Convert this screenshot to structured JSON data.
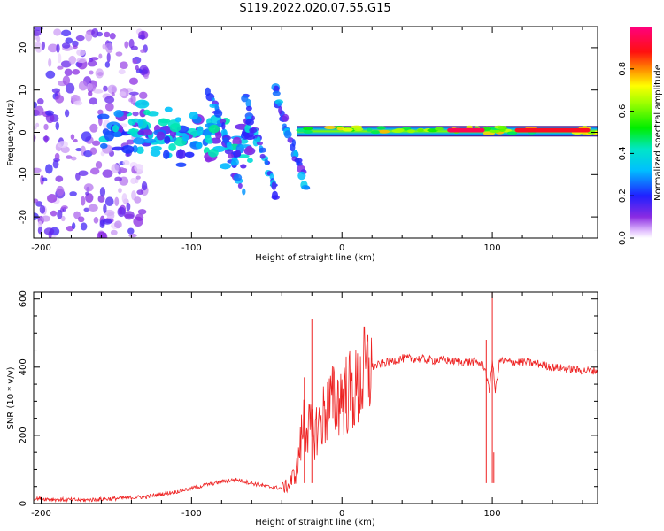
{
  "title": "S119.2022.020.07.55.G15",
  "colors": {
    "snr_line": "#ee2222",
    "axes": "#000000",
    "background": "#ffffff"
  },
  "chart_data": [
    {
      "type": "heatmap",
      "title": "S119.2022.020.07.55.G15",
      "xlabel": "Height of straight line (km)",
      "ylabel": "Frequency (Hz)",
      "xlim": [
        -205,
        170
      ],
      "ylim": [
        -25,
        25
      ],
      "xticks": [
        -200,
        -100,
        0,
        100
      ],
      "yticks": [
        -20,
        -10,
        0,
        10,
        20
      ],
      "colorbar": {
        "label": "Normalized spectral amplitude",
        "range": [
          0,
          1
        ],
        "ticks": [
          0.0,
          0.2,
          0.4,
          0.6,
          0.8
        ],
        "colormap": "rainbow (white → purple → blue → cyan → green → yellow → red → magenta)"
      },
      "features": [
        {
          "name": "scattered noise",
          "x_range": [
            -205,
            -130
          ],
          "freq_range": [
            -25,
            25
          ],
          "amplitude": 0.15
        },
        {
          "name": "multipath patches",
          "x_range": [
            -160,
            -60
          ],
          "freq_range": [
            -8,
            6
          ],
          "amplitude": 0.25
        },
        {
          "name": "diagonal streaks",
          "x_range": [
            -90,
            -30
          ],
          "freq_range": [
            -15,
            10
          ],
          "amplitude": 0.2
        },
        {
          "name": "direct signal band",
          "x_range": [
            -30,
            170
          ],
          "freq_range": [
            -1,
            1.5
          ],
          "center_freq": 0.5,
          "amplitude": 0.6
        },
        {
          "name": "peak amplitude segment",
          "x_range": [
            70,
            95
          ],
          "freq_range": [
            0,
            1
          ],
          "amplitude": 0.95
        },
        {
          "name": "peak amplitude segment",
          "x_range": [
            115,
            165
          ],
          "freq_range": [
            0,
            1
          ],
          "amplitude": 0.9
        }
      ]
    },
    {
      "type": "line",
      "xlabel": "Height of straight line (km)",
      "ylabel": "SNR (10 * v/v)",
      "xlim": [
        -205,
        170
      ],
      "ylim": [
        0,
        620
      ],
      "xticks": [
        -200,
        -100,
        0,
        100
      ],
      "yticks": [
        0,
        200,
        400,
        600
      ],
      "series": [
        {
          "x": [
            -205,
            -190,
            -170,
            -150,
            -130,
            -110,
            -100,
            -90,
            -80,
            -70,
            -60,
            -50,
            -40,
            -35,
            -30,
            -25,
            -20,
            -15,
            -10,
            0,
            10,
            15,
            20,
            30,
            40,
            50,
            60,
            70,
            80,
            90,
            95,
            98,
            100,
            102,
            105,
            110,
            120,
            130,
            140,
            150,
            160,
            170
          ],
          "y": [
            15,
            12,
            10,
            15,
            20,
            35,
            45,
            55,
            65,
            70,
            60,
            50,
            45,
            55,
            100,
            250,
            200,
            230,
            280,
            320,
            330,
            380,
            400,
            415,
            425,
            425,
            420,
            420,
            415,
            415,
            400,
            330,
            420,
            330,
            420,
            415,
            415,
            410,
            400,
            395,
            390,
            390
          ]
        }
      ],
      "spikes": [
        {
          "x": -20,
          "y": 540
        },
        {
          "x": -25,
          "y": 370
        },
        {
          "x": 96,
          "y": 480
        },
        {
          "x": 100,
          "y": 620
        },
        {
          "x": 101,
          "y": 150
        }
      ]
    }
  ]
}
